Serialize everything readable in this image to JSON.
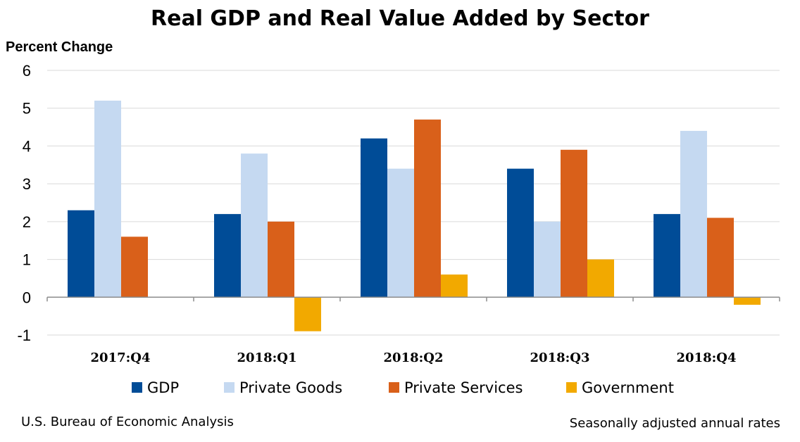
{
  "chart_data": {
    "type": "bar",
    "title": "Real GDP and Real Value Added by Sector",
    "ylabel": "Percent Change",
    "xlabel": "",
    "categories": [
      "2017:Q4",
      "2018:Q1",
      "2018:Q2",
      "2018:Q3",
      "2018:Q4"
    ],
    "series": [
      {
        "name": "GDP",
        "color": "#004c97",
        "values": [
          2.3,
          2.2,
          4.2,
          3.4,
          2.2
        ]
      },
      {
        "name": "Private Goods",
        "color": "#c5d9f1",
        "values": [
          5.2,
          3.8,
          3.4,
          2.0,
          4.4
        ]
      },
      {
        "name": "Private Services",
        "color": "#d9601a",
        "values": [
          1.6,
          2.0,
          4.7,
          3.9,
          2.1
        ]
      },
      {
        "name": "Government",
        "color": "#f2a900",
        "values": [
          0.0,
          -0.9,
          0.6,
          1.0,
          -0.2
        ]
      }
    ],
    "ylim": [
      -1,
      6
    ],
    "yticks": [
      "6",
      "5",
      "4",
      "3",
      "2",
      "1",
      "0",
      "-1"
    ],
    "grid": true,
    "legend": "bottom"
  },
  "footer": {
    "source": "U.S. Bureau of Economic Analysis",
    "note": "Seasonally adjusted annual rates"
  },
  "colors": {
    "gridline": "#d9d9d9",
    "axis": "#8c8c8c"
  }
}
